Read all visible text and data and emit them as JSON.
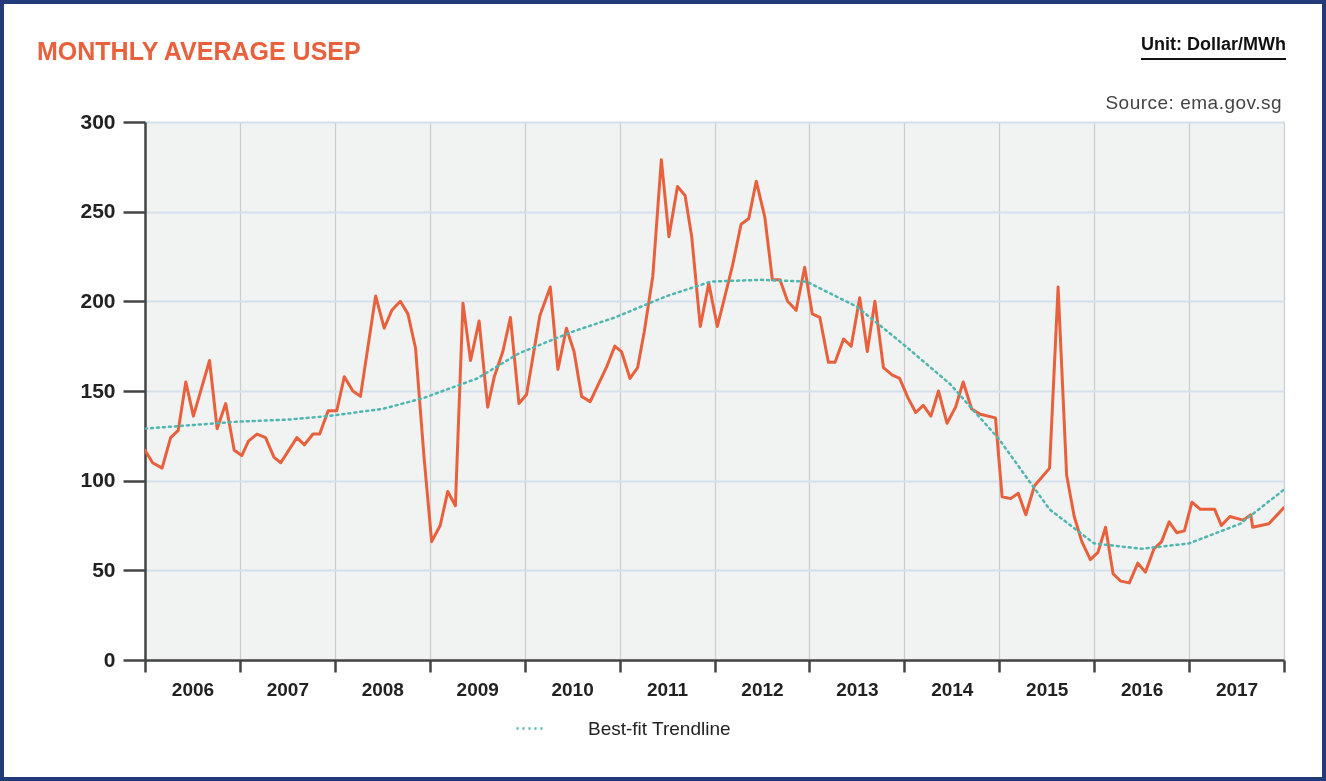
{
  "chart_data": {
    "type": "line",
    "title": "MONTHLY AVERAGE USEP",
    "annotations": [
      "Unit: Dollar/MWh",
      "Source: ema.gov.sg"
    ],
    "xlim": [
      2006,
      2018
    ],
    "xticks": [
      {
        "value": 2006,
        "label": null
      },
      {
        "value": 2006.5,
        "label": "2006"
      },
      {
        "value": 2007,
        "label": null
      },
      {
        "value": 2007.5,
        "label": "2007"
      },
      {
        "value": 2008,
        "label": null
      },
      {
        "value": 2008.5,
        "label": "2008"
      },
      {
        "value": 2009,
        "label": null
      },
      {
        "value": 2009.5,
        "label": "2009"
      },
      {
        "value": 2010,
        "label": null
      },
      {
        "value": 2010.5,
        "label": "2010"
      },
      {
        "value": 2011,
        "label": null
      },
      {
        "value": 2011.5,
        "label": "2011"
      },
      {
        "value": 2012,
        "label": null
      },
      {
        "value": 2012.5,
        "label": "2012"
      },
      {
        "value": 2013,
        "label": null
      },
      {
        "value": 2013.5,
        "label": "2013"
      },
      {
        "value": 2014,
        "label": null
      },
      {
        "value": 2014.5,
        "label": "2014"
      },
      {
        "value": 2015,
        "label": null
      },
      {
        "value": 2015.5,
        "label": "2015"
      },
      {
        "value": 2016,
        "label": null
      },
      {
        "value": 2016.5,
        "label": "2016"
      },
      {
        "value": 2017,
        "label": null
      },
      {
        "value": 2017.5,
        "label": "2017"
      },
      {
        "value": 2018,
        "label": null
      }
    ],
    "ylim": [
      0,
      300
    ],
    "yticks": [
      0,
      50,
      100,
      150,
      200,
      250,
      300
    ],
    "grid": true,
    "legend": "bottom",
    "series": [
      {
        "color": "#e8603c",
        "line_style": "solid",
        "x": [
          2006.0,
          2006.08,
          2006.18,
          2006.27,
          2006.35,
          2006.43,
          2006.51,
          2006.68,
          2006.76,
          2006.85,
          2006.94,
          2007.02,
          2007.09,
          2007.18,
          2007.27,
          2007.36,
          2007.43,
          2007.6,
          2007.68,
          2007.77,
          2007.84,
          2007.93,
          2008.02,
          2008.1,
          2008.19,
          2008.27,
          2008.43,
          2008.52,
          2008.6,
          2008.69,
          2008.77,
          2008.85,
          2008.94,
          2009.02,
          2009.11,
          2009.19,
          2009.27,
          2009.35,
          2009.43,
          2009.52,
          2009.61,
          2009.68,
          2009.77,
          2009.85,
          2009.94,
          2010.02,
          2010.16,
          2010.27,
          2010.35,
          2010.44,
          2010.52,
          2010.6,
          2010.69,
          2010.77,
          2010.86,
          2010.95,
          2011.02,
          2011.11,
          2011.19,
          2011.26,
          2011.35,
          2011.44,
          2011.52,
          2011.61,
          2011.69,
          2011.76,
          2011.85,
          2011.94,
          2012.03,
          2012.12,
          2012.19,
          2012.28,
          2012.36,
          2012.44,
          2012.53,
          2012.61,
          2012.69,
          2012.77,
          2012.86,
          2012.95,
          2013.03,
          2013.11,
          2013.2,
          2013.27,
          2013.36,
          2013.44,
          2013.53,
          2013.61,
          2013.69,
          2013.78,
          2013.87,
          2013.95,
          2014.04,
          2014.12,
          2014.2,
          2014.28,
          2014.36,
          2014.45,
          2014.54,
          2014.62,
          2014.71,
          2014.8,
          2014.96,
          2015.03,
          2015.12,
          2015.2,
          2015.28,
          2015.37,
          2015.53,
          2015.62,
          2015.71,
          2015.79,
          2015.87,
          2015.96,
          2016.04,
          2016.12,
          2016.2,
          2016.28,
          2016.37,
          2016.46,
          2016.54,
          2016.63,
          2016.71,
          2016.79,
          2016.87,
          2016.95,
          2017.03,
          2017.12,
          2017.27,
          2017.34,
          2017.43,
          2017.57,
          2017.65,
          2017.67,
          2017.84,
          2018.0
        ],
        "values": [
          117,
          110,
          107,
          124,
          128,
          155,
          136,
          167,
          129,
          143,
          117,
          114,
          122,
          126,
          124,
          113,
          110,
          124,
          120,
          126,
          126,
          139,
          139,
          158,
          150,
          147,
          203,
          185,
          195,
          200,
          193,
          174,
          113,
          66,
          75,
          94,
          86,
          199,
          167,
          189,
          141,
          158,
          172,
          191,
          143,
          148,
          192,
          208,
          162,
          185,
          172,
          147,
          144,
          153,
          163,
          175,
          172,
          157,
          163,
          183,
          214,
          279,
          236,
          264,
          259,
          236,
          186,
          210,
          186,
          205,
          220,
          243,
          246,
          267,
          247,
          212,
          212,
          200,
          195,
          219,
          193,
          191,
          166,
          166,
          179,
          175,
          202,
          172,
          200,
          163,
          159,
          157,
          146,
          138,
          142,
          136,
          150,
          132,
          141,
          155,
          140,
          137,
          135,
          91,
          90,
          93,
          81,
          97,
          107,
          208,
          103,
          80,
          66,
          56,
          60,
          74,
          48,
          44,
          43,
          54,
          49,
          62,
          66,
          77,
          71,
          72,
          88,
          84,
          84,
          75,
          80,
          78,
          81,
          74,
          76,
          85
        ]
      },
      {
        "name": "Best-fit Trendline",
        "color": "#4fb6b0",
        "line_style": "dotted",
        "x": [
          2006.0,
          2006.5,
          2007.0,
          2007.5,
          2007.93,
          2008.5,
          2008.93,
          2009.5,
          2009.94,
          2010.5,
          2010.95,
          2011.5,
          2011.96,
          2012.48,
          2012.97,
          2013.5,
          2013.99,
          2014.48,
          2015.0,
          2015.53,
          2016.0,
          2016.5,
          2017.0,
          2017.54,
          2018.0
        ],
        "values": [
          129,
          131,
          133,
          134,
          136,
          140,
          146,
          157,
          171,
          183,
          191,
          203,
          211,
          212,
          211,
          197,
          176,
          154,
          123,
          84,
          65,
          62,
          65,
          76,
          95
        ]
      }
    ]
  }
}
